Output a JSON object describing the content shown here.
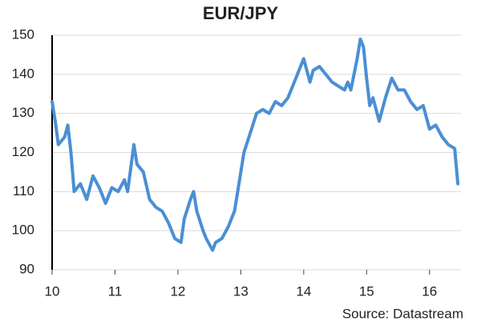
{
  "chart_data": {
    "type": "line",
    "title": "EUR/JPY",
    "source": "Source: Datastream",
    "x": [
      10.0,
      10.05,
      10.1,
      10.2,
      10.25,
      10.3,
      10.35,
      10.45,
      10.55,
      10.65,
      10.75,
      10.85,
      10.95,
      11.05,
      11.15,
      11.2,
      11.25,
      11.3,
      11.35,
      11.45,
      11.55,
      11.65,
      11.75,
      11.85,
      11.95,
      12.05,
      12.1,
      12.2,
      12.25,
      12.3,
      12.4,
      12.45,
      12.55,
      12.6,
      12.7,
      12.8,
      12.9,
      12.95,
      13.05,
      13.15,
      13.25,
      13.35,
      13.45,
      13.55,
      13.65,
      13.75,
      13.85,
      13.95,
      14.0,
      14.1,
      14.15,
      14.25,
      14.35,
      14.45,
      14.55,
      14.65,
      14.7,
      14.75,
      14.85,
      14.9,
      14.95,
      15.0,
      15.05,
      15.1,
      15.2,
      15.3,
      15.4,
      15.5,
      15.6,
      15.7,
      15.8,
      15.9,
      16.0,
      16.1,
      16.2,
      16.3,
      16.4,
      16.45
    ],
    "series": [
      {
        "color": "#4a8fd4",
        "values": [
          133,
          128,
          122,
          124,
          127,
          120,
          110,
          112,
          108,
          114,
          111,
          107,
          111,
          110,
          113,
          110,
          116,
          122,
          117,
          115,
          108,
          106,
          105,
          102,
          98,
          97,
          103,
          108,
          110,
          105,
          100,
          98,
          95,
          97,
          98,
          101,
          105,
          110,
          120,
          125,
          130,
          131,
          130,
          133,
          132,
          134,
          138,
          142,
          144,
          138,
          141,
          142,
          140,
          138,
          137,
          136,
          138,
          136,
          144,
          149,
          147,
          139,
          132,
          134,
          128,
          134,
          139,
          136,
          136,
          133,
          131,
          132,
          126,
          127,
          124,
          122,
          121,
          112
        ]
      }
    ],
    "xlim": [
      10,
      16.5
    ],
    "xticks": [
      10,
      11,
      12,
      13,
      14,
      15,
      16
    ],
    "ylim": [
      90,
      150
    ],
    "yticks": [
      90,
      100,
      110,
      120,
      130,
      140,
      150
    ],
    "grid": true
  }
}
